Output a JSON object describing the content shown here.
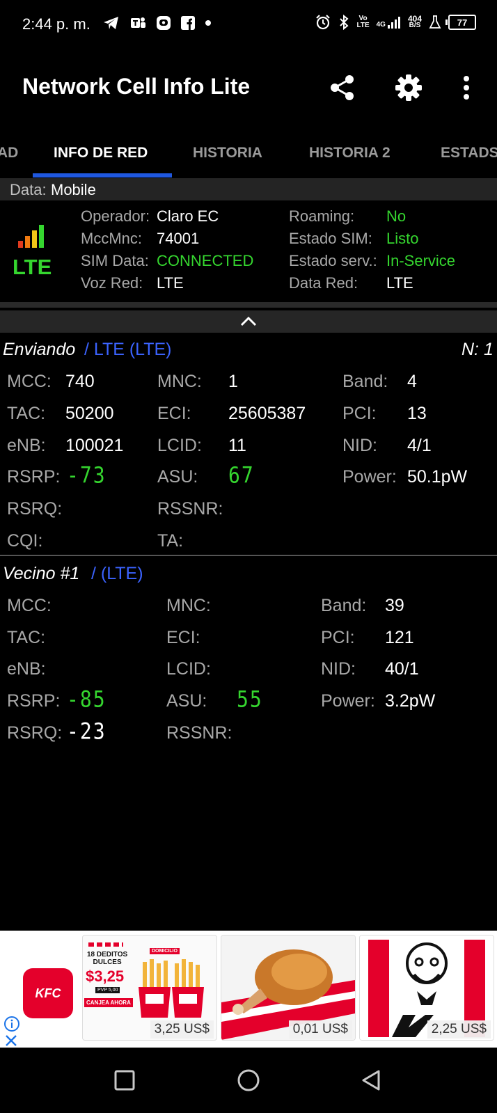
{
  "status_bar": {
    "time": "2:44 p. m.",
    "net_top": "Vo",
    "net_bottom": "LTE",
    "net_type": "4G",
    "speed_value": "404",
    "speed_unit": "B/S",
    "battery": "77"
  },
  "app_bar": {
    "title": "Network Cell Info Lite"
  },
  "tabs": [
    "AD",
    "INFO DE RED",
    "HISTORIA",
    "HISTORIA 2",
    "ESTADS"
  ],
  "data_bar": {
    "label": "Data:",
    "value": "Mobile"
  },
  "summary": {
    "technology": "LTE",
    "operador_label": "Operador:",
    "operador": "Claro EC",
    "mccmnc_label": "MccMnc:",
    "mccmnc": "74001",
    "simdata_label": "SIM Data:",
    "simdata": "CONNECTED",
    "vozred_label": "Voz Red:",
    "vozred": "LTE",
    "roaming_label": "Roaming:",
    "roaming": "No",
    "estadosim_label": "Estado SIM:",
    "estadosim": "Listo",
    "estadoserv_label": "Estado serv.:",
    "estadoserv": "In-Service",
    "datared_label": "Data Red:",
    "datared": "LTE"
  },
  "serving": {
    "title": "Enviando",
    "tech": "/ LTE (LTE)",
    "count": "N: 1",
    "mcc_label": "MCC:",
    "mcc": "740",
    "mnc_label": "MNC:",
    "mnc": "1",
    "band_label": "Band:",
    "band": "4",
    "tac_label": "TAC:",
    "tac": "50200",
    "eci_label": "ECI:",
    "eci": "25605387",
    "pci_label": "PCI:",
    "pci": "13",
    "enb_label": "eNB:",
    "enb": "100021",
    "lcid_label": "LCID:",
    "lcid": "11",
    "nid_label": "NID:",
    "nid": "4/1",
    "rsrp_label": "RSRP:",
    "rsrp": "-73",
    "asu_label": "ASU:",
    "asu": "67",
    "power_label": "Power:",
    "power": "50.1pW",
    "rsrq_label": "RSRQ:",
    "rssnr_label": "RSSNR:",
    "cqi_label": "CQI:",
    "ta_label": "TA:"
  },
  "neighbor": {
    "title": "Vecino #1",
    "tech": "/ (LTE)",
    "mcc_label": "MCC:",
    "mnc_label": "MNC:",
    "band_label": "Band:",
    "band": "39",
    "tac_label": "TAC:",
    "eci_label": "ECI:",
    "pci_label": "PCI:",
    "pci": "121",
    "enb_label": "eNB:",
    "lcid_label": "LCID:",
    "nid_label": "NID:",
    "nid": "40/1",
    "rsrp_label": "RSRP:",
    "rsrp": "-85",
    "asu_label": "ASU:",
    "asu": "55",
    "power_label": "Power:",
    "power": "3.2pW",
    "rsrq_label": "RSRQ:",
    "rsrq": "-23",
    "rssnr_label": "RSSNR:"
  },
  "ad": {
    "brand": "KFC",
    "card1_line1": "18 DEDITOS",
    "card1_line2": "DULCES",
    "card1_price_big": "$3,25",
    "card1_pvp": "PVP 5,00",
    "card1_cta": "CANJEA AHORA",
    "card1_tag": "DOMICILIO",
    "price1": "3,25 US$",
    "price2": "0,01 US$",
    "price3": "2,25 US$"
  },
  "colors": {
    "accent": "#1f58e0",
    "good": "#35d62f",
    "link": "#3b63ff",
    "kfc_red": "#e4002b"
  }
}
